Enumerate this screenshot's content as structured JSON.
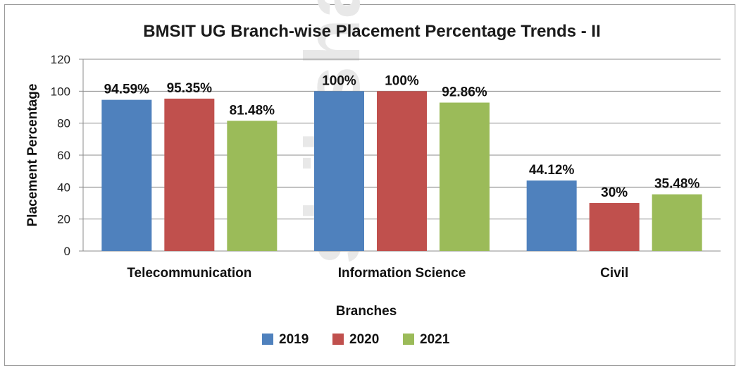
{
  "chart_data": {
    "type": "bar",
    "title": "BMSIT UG Branch-wise Placement Percentage Trends - II",
    "xlabel": "Branches",
    "ylabel": "Placement Percentage",
    "ylim": [
      0,
      120
    ],
    "yticks": [
      0,
      20,
      40,
      60,
      80,
      100,
      120
    ],
    "categories": [
      "Telecommunication",
      "Information Science",
      "Civil"
    ],
    "series": [
      {
        "name": "2019",
        "color": "#4F81BD",
        "values": [
          94.59,
          100,
          44.12
        ],
        "labels": [
          "94.59%",
          "100%",
          "44.12%"
        ]
      },
      {
        "name": "2020",
        "color": "#C0504D",
        "values": [
          95.35,
          100,
          30
        ],
        "labels": [
          "95.35%",
          "100%",
          "30%"
        ]
      },
      {
        "name": "2021",
        "color": "#9BBB59",
        "values": [
          81.48,
          92.86,
          35.48
        ],
        "labels": [
          "81.48%",
          "92.86%",
          "35.48%"
        ]
      }
    ],
    "grid": true,
    "legend": "bottom"
  },
  "watermark": "shiksha"
}
